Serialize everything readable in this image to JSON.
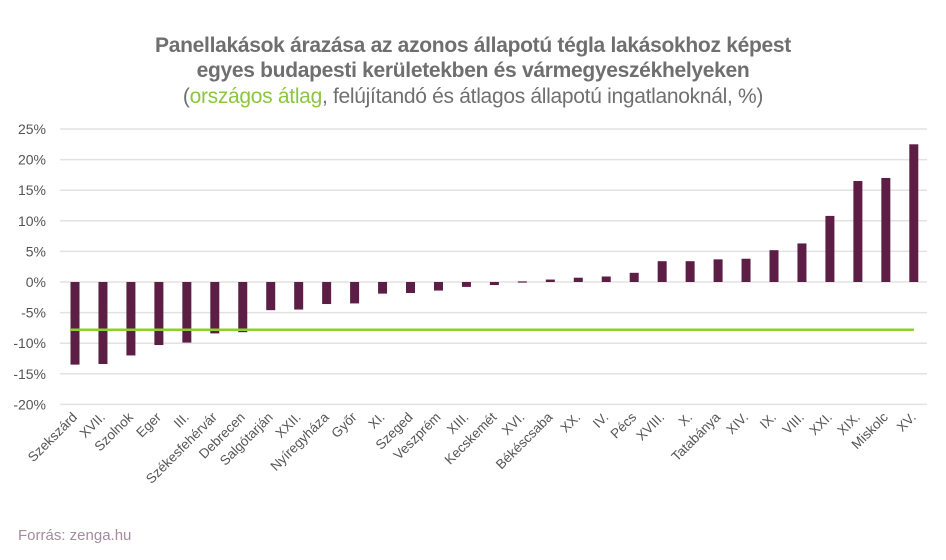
{
  "colors": {
    "bar": "#5c1e45",
    "average_line": "#8cd12a",
    "accent_text": "#8cc63f",
    "grid": "#e2e2e2",
    "text": "#6f6f6f",
    "source_text": "#a58aa0"
  },
  "chart_data": {
    "type": "bar",
    "title_line1": "Panellakások árazása az azonos állapotú tégla lakásokhoz képest",
    "title_line2": "egyes budapesti kerületekben és vármegyeszékhelyeken",
    "subtitle_open": "(",
    "subtitle_accent": "országos átlag",
    "subtitle_rest": ", felújítandó és átlagos állapotú ingatlanoknál, %)",
    "xlabel": "",
    "ylabel": "",
    "ylim": [
      -20,
      25
    ],
    "yticks": [
      25,
      20,
      15,
      10,
      5,
      0,
      -5,
      -10,
      -15,
      -20
    ],
    "ytick_labels": [
      "25%",
      "20%",
      "15%",
      "10%",
      "5%",
      "0%",
      "-5%",
      "-10%",
      "-15%",
      "-20%"
    ],
    "grid": true,
    "categories": [
      "Szekszárd",
      "XVII.",
      "Szolnok",
      "Eger",
      "III.",
      "Székesfehérvár",
      "Debrecen",
      "Salgótarján",
      "XXII.",
      "Nyíregyháza",
      "Győr",
      "XI.",
      "Szeged",
      "Veszprém",
      "XIII.",
      "Kecskemét",
      "XVI.",
      "Békéscsaba",
      "XX.",
      "IV.",
      "Pécs",
      "XVIII.",
      "X.",
      "Tatabánya",
      "XIV.",
      "IX.",
      "VIII.",
      "XXI.",
      "XIX.",
      "Miskolc",
      "XV."
    ],
    "values": [
      -13.5,
      -13.4,
      -12.0,
      -10.3,
      -9.9,
      -8.4,
      -8.2,
      -4.6,
      -4.5,
      -3.6,
      -3.5,
      -1.9,
      -1.8,
      -1.4,
      -0.8,
      -0.5,
      0.1,
      0.4,
      0.7,
      0.9,
      1.5,
      3.4,
      3.4,
      3.7,
      3.8,
      5.2,
      6.3,
      10.8,
      16.5,
      17.0,
      22.5
    ],
    "average": {
      "label": "országos átlag",
      "value": -7.8
    },
    "source": "Forrás: zenga.hu"
  }
}
